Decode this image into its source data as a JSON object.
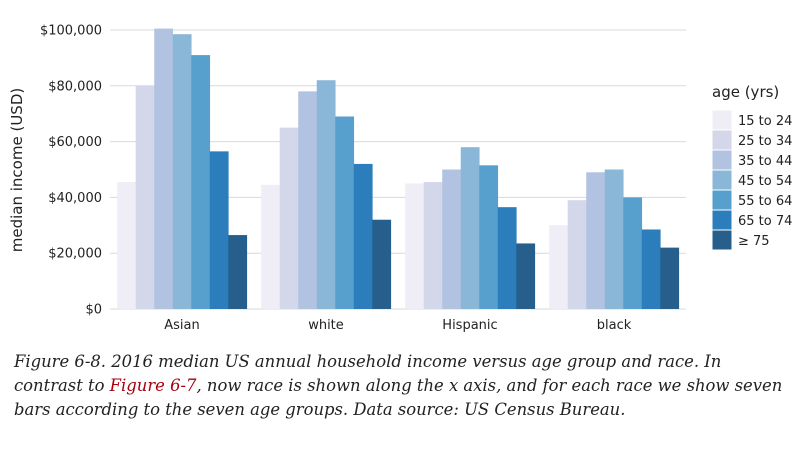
{
  "chart_data": {
    "type": "bar",
    "title": "",
    "xlabel": "",
    "ylabel": "median income (USD)",
    "ylim": [
      0,
      100000
    ],
    "yticks": [
      0,
      20000,
      40000,
      60000,
      80000,
      100000
    ],
    "ytick_labels": [
      "$0",
      "$20,000",
      "$40,000",
      "$60,000",
      "$80,000",
      "$100,000"
    ],
    "grid": "horizontal",
    "legend": {
      "title": "age (yrs)",
      "placement": "right"
    },
    "categories": [
      "Asian",
      "white",
      "Hispanic",
      "black"
    ],
    "series": [
      {
        "name": "15 to 24",
        "color": "#efedf5",
        "values": [
          45500,
          44500,
          45000,
          30000
        ]
      },
      {
        "name": "25 to 34",
        "color": "#d4d6e9",
        "values": [
          80000,
          65000,
          45500,
          39000
        ]
      },
      {
        "name": "35 to 44",
        "color": "#b1c3e1",
        "values": [
          100500,
          78000,
          50000,
          49000
        ]
      },
      {
        "name": "45 to 54",
        "color": "#8ab7d8",
        "values": [
          98500,
          82000,
          58000,
          50000
        ]
      },
      {
        "name": "55 to 64",
        "color": "#57a0ce",
        "values": [
          91000,
          69000,
          51500,
          40000
        ]
      },
      {
        "name": "65 to 74",
        "color": "#2c7dbb",
        "values": [
          56500,
          52000,
          36500,
          28500
        ]
      },
      {
        "name": "≥ 75",
        "color": "#265f8c",
        "values": [
          26500,
          32000,
          23500,
          22000
        ]
      }
    ]
  },
  "caption": {
    "part1": "Figure 6-8. 2016 median US annual household income versus age group and race. In contrast to ",
    "link": "Figure 6-7",
    "part2": ", now race is shown along the x axis, and for each race we show seven bars according to the seven age groups. Data source: US Census Bureau."
  }
}
